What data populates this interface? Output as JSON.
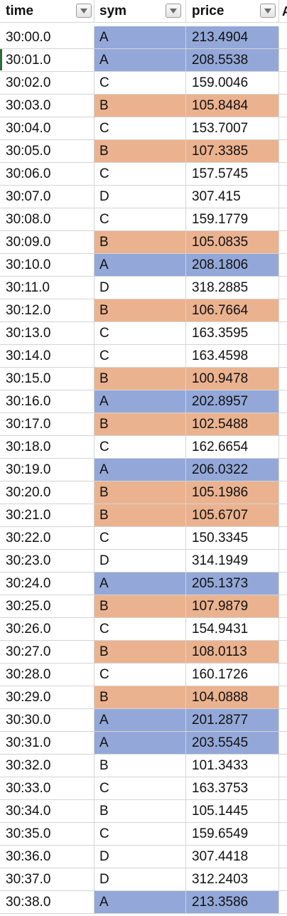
{
  "sheet": {
    "headers": {
      "time": "time",
      "sym": "sym",
      "price": "price",
      "next_column_partial": "A"
    },
    "highlight_colors": {
      "A": "#93a8d8",
      "B": "#ebb28f"
    },
    "active_row_index": 1,
    "rows": [
      {
        "time": "30:00.0",
        "sym": "A",
        "price": "213.4904"
      },
      {
        "time": "30:01.0",
        "sym": "A",
        "price": "208.5538"
      },
      {
        "time": "30:02.0",
        "sym": "C",
        "price": "159.0046"
      },
      {
        "time": "30:03.0",
        "sym": "B",
        "price": "105.8484"
      },
      {
        "time": "30:04.0",
        "sym": "C",
        "price": "153.7007"
      },
      {
        "time": "30:05.0",
        "sym": "B",
        "price": "107.3385"
      },
      {
        "time": "30:06.0",
        "sym": "C",
        "price": "157.5745"
      },
      {
        "time": "30:07.0",
        "sym": "D",
        "price": "307.415"
      },
      {
        "time": "30:08.0",
        "sym": "C",
        "price": "159.1779"
      },
      {
        "time": "30:09.0",
        "sym": "B",
        "price": "105.0835"
      },
      {
        "time": "30:10.0",
        "sym": "A",
        "price": "208.1806"
      },
      {
        "time": "30:11.0",
        "sym": "D",
        "price": "318.2885"
      },
      {
        "time": "30:12.0",
        "sym": "B",
        "price": "106.7664"
      },
      {
        "time": "30:13.0",
        "sym": "C",
        "price": "163.3595"
      },
      {
        "time": "30:14.0",
        "sym": "C",
        "price": "163.4598"
      },
      {
        "time": "30:15.0",
        "sym": "B",
        "price": "100.9478"
      },
      {
        "time": "30:16.0",
        "sym": "A",
        "price": "202.8957"
      },
      {
        "time": "30:17.0",
        "sym": "B",
        "price": "102.5488"
      },
      {
        "time": "30:18.0",
        "sym": "C",
        "price": "162.6654"
      },
      {
        "time": "30:19.0",
        "sym": "A",
        "price": "206.0322"
      },
      {
        "time": "30:20.0",
        "sym": "B",
        "price": "105.1986"
      },
      {
        "time": "30:21.0",
        "sym": "B",
        "price": "105.6707"
      },
      {
        "time": "30:22.0",
        "sym": "C",
        "price": "150.3345"
      },
      {
        "time": "30:23.0",
        "sym": "D",
        "price": "314.1949"
      },
      {
        "time": "30:24.0",
        "sym": "A",
        "price": "205.1373"
      },
      {
        "time": "30:25.0",
        "sym": "B",
        "price": "107.9879"
      },
      {
        "time": "30:26.0",
        "sym": "C",
        "price": "154.9431"
      },
      {
        "time": "30:27.0",
        "sym": "B",
        "price": "108.0113"
      },
      {
        "time": "30:28.0",
        "sym": "C",
        "price": "160.1726"
      },
      {
        "time": "30:29.0",
        "sym": "B",
        "price": "104.0888"
      },
      {
        "time": "30:30.0",
        "sym": "A",
        "price": "201.2877"
      },
      {
        "time": "30:31.0",
        "sym": "A",
        "price": "203.5545"
      },
      {
        "time": "30:32.0",
        "sym": "B",
        "price": "101.3433",
        "highlight": false
      },
      {
        "time": "30:33.0",
        "sym": "C",
        "price": "163.3753"
      },
      {
        "time": "30:34.0",
        "sym": "B",
        "price": "105.1445",
        "highlight": false
      },
      {
        "time": "30:35.0",
        "sym": "C",
        "price": "159.6549"
      },
      {
        "time": "30:36.0",
        "sym": "D",
        "price": "307.4418"
      },
      {
        "time": "30:37.0",
        "sym": "D",
        "price": "312.2403"
      },
      {
        "time": "30:38.0",
        "sym": "A",
        "price": "213.3586"
      }
    ]
  }
}
